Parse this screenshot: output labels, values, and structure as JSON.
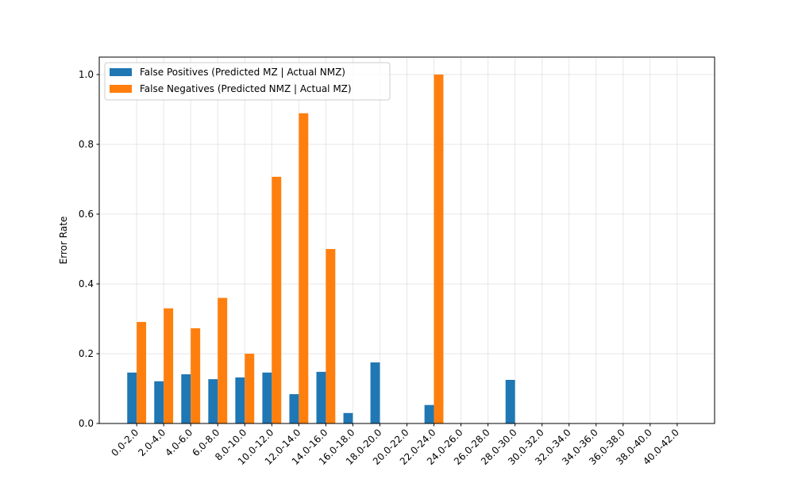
{
  "chart_data": {
    "type": "bar",
    "title": "",
    "xlabel": "",
    "ylabel": "Error Rate",
    "ylim": [
      0,
      1.05
    ],
    "yticks": [
      "0.0",
      "0.2",
      "0.4",
      "0.6",
      "0.8",
      "1.0"
    ],
    "grid": true,
    "legend_position": "top-left",
    "categories": [
      "0.0-2.0",
      "2.0-4.0",
      "4.0-6.0",
      "6.0-8.0",
      "8.0-10.0",
      "10.0-12.0",
      "12.0-14.0",
      "14.0-16.0",
      "16.0-18.0",
      "18.0-20.0",
      "20.0-22.0",
      "22.0-24.0",
      "24.0-26.0",
      "26.0-28.0",
      "28.0-30.0",
      "30.0-32.0",
      "32.0-34.0",
      "34.0-36.0",
      "36.0-38.0",
      "38.0-40.0",
      "40.0-42.0"
    ],
    "series": [
      {
        "name": "False Positives (Predicted MZ | Actual NMZ)",
        "color": "#1f77b4",
        "values": [
          0.146,
          0.121,
          0.141,
          0.127,
          0.132,
          0.146,
          0.084,
          0.148,
          0.03,
          0.175,
          0,
          0.053,
          0,
          0,
          0.125,
          0,
          0,
          0,
          0,
          0,
          0
        ]
      },
      {
        "name": "False Negatives (Predicted NMZ | Actual MZ)",
        "color": "#ff7f0e",
        "values": [
          0.291,
          0.33,
          0.273,
          0.36,
          0.2,
          0.707,
          0.889,
          0.5,
          0,
          0,
          0,
          1.0,
          0,
          0,
          0,
          0,
          0,
          0,
          0,
          0,
          0
        ]
      }
    ]
  }
}
